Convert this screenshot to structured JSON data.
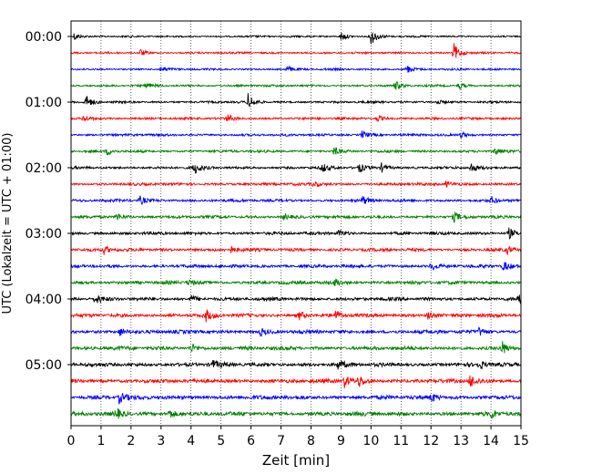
{
  "chart_data": {
    "type": "line",
    "title": "",
    "xlabel": "Zeit  [min]",
    "ylabel": "UTC (Lokalzeit = UTC + 01:00)",
    "xlim": [
      0,
      15
    ],
    "xticks": [
      0,
      1,
      2,
      3,
      4,
      5,
      6,
      7,
      8,
      9,
      10,
      11,
      12,
      13,
      14,
      15
    ],
    "grid": "vertical dotted at each minute",
    "y_tick_labels": [
      "00:00",
      "01:00",
      "02:00",
      "03:00",
      "04:00",
      "05:00"
    ],
    "y_tick_rows": [
      0,
      4,
      8,
      12,
      16,
      20
    ],
    "trace_interval_min": 15,
    "trace_count": 24,
    "trace_colors": [
      "#000000",
      "#ff0000",
      "#0000ff",
      "#008000"
    ],
    "events": [
      {
        "row": 0,
        "t": 0.1,
        "amp": 0.45
      },
      {
        "row": 0,
        "t": 9.0,
        "amp": 0.55
      },
      {
        "row": 0,
        "t": 10.0,
        "amp": 1.0
      },
      {
        "row": 1,
        "t": 2.3,
        "amp": 0.4
      },
      {
        "row": 1,
        "t": 12.75,
        "amp": 1.1
      },
      {
        "row": 2,
        "t": 3.0,
        "amp": 0.3
      },
      {
        "row": 2,
        "t": 7.2,
        "amp": 0.35
      },
      {
        "row": 2,
        "t": 11.2,
        "amp": 0.45
      },
      {
        "row": 3,
        "t": 2.5,
        "amp": 0.35
      },
      {
        "row": 3,
        "t": 10.8,
        "amp": 0.5
      },
      {
        "row": 3,
        "t": 12.9,
        "amp": 0.45
      },
      {
        "row": 4,
        "t": 0.5,
        "amp": 0.7
      },
      {
        "row": 4,
        "t": 5.9,
        "amp": 0.9
      },
      {
        "row": 4,
        "t": 12.2,
        "amp": 0.3
      },
      {
        "row": 5,
        "t": 0.4,
        "amp": 0.4
      },
      {
        "row": 5,
        "t": 5.2,
        "amp": 0.5
      },
      {
        "row": 5,
        "t": 10.2,
        "amp": 0.35
      },
      {
        "row": 6,
        "t": 9.7,
        "amp": 0.45
      },
      {
        "row": 6,
        "t": 13.0,
        "amp": 0.35
      },
      {
        "row": 7,
        "t": 1.2,
        "amp": 0.4
      },
      {
        "row": 7,
        "t": 8.75,
        "amp": 0.5
      },
      {
        "row": 7,
        "t": 14.1,
        "amp": 0.45
      },
      {
        "row": 8,
        "t": 4.1,
        "amp": 0.7
      },
      {
        "row": 8,
        "t": 8.35,
        "amp": 0.5
      },
      {
        "row": 8,
        "t": 9.6,
        "amp": 0.5
      },
      {
        "row": 8,
        "t": 10.35,
        "amp": 0.5
      },
      {
        "row": 8,
        "t": 13.3,
        "amp": 0.6
      },
      {
        "row": 9,
        "t": 8.1,
        "amp": 0.35
      },
      {
        "row": 9,
        "t": 12.5,
        "amp": 0.3
      },
      {
        "row": 10,
        "t": 2.3,
        "amp": 0.45
      },
      {
        "row": 10,
        "t": 9.7,
        "amp": 0.5
      },
      {
        "row": 10,
        "t": 14.0,
        "amp": 0.4
      },
      {
        "row": 11,
        "t": 1.5,
        "amp": 0.45
      },
      {
        "row": 11,
        "t": 7.1,
        "amp": 0.3
      },
      {
        "row": 11,
        "t": 12.75,
        "amp": 0.55
      },
      {
        "row": 12,
        "t": 8.9,
        "amp": 0.45
      },
      {
        "row": 12,
        "t": 14.6,
        "amp": 0.6
      },
      {
        "row": 13,
        "t": 1.1,
        "amp": 0.45
      },
      {
        "row": 13,
        "t": 5.3,
        "amp": 0.4
      },
      {
        "row": 13,
        "t": 14.5,
        "amp": 0.45
      },
      {
        "row": 14,
        "t": 12.0,
        "amp": 0.5
      },
      {
        "row": 14,
        "t": 14.4,
        "amp": 0.55
      },
      {
        "row": 15,
        "t": 3.9,
        "amp": 0.4
      },
      {
        "row": 15,
        "t": 8.8,
        "amp": 0.45
      },
      {
        "row": 16,
        "t": 0.8,
        "amp": 0.55
      },
      {
        "row": 16,
        "t": 4.0,
        "amp": 0.45
      },
      {
        "row": 16,
        "t": 14.9,
        "amp": 0.55
      },
      {
        "row": 17,
        "t": 4.5,
        "amp": 0.6
      },
      {
        "row": 17,
        "t": 7.6,
        "amp": 0.5
      },
      {
        "row": 17,
        "t": 8.8,
        "amp": 0.55
      },
      {
        "row": 17,
        "t": 11.9,
        "amp": 0.5
      },
      {
        "row": 18,
        "t": 1.6,
        "amp": 0.5
      },
      {
        "row": 18,
        "t": 6.3,
        "amp": 0.4
      },
      {
        "row": 18,
        "t": 13.6,
        "amp": 0.45
      },
      {
        "row": 19,
        "t": 4.0,
        "amp": 0.5
      },
      {
        "row": 19,
        "t": 14.35,
        "amp": 0.85
      },
      {
        "row": 20,
        "t": 4.7,
        "amp": 0.45
      },
      {
        "row": 20,
        "t": 8.9,
        "amp": 0.45
      },
      {
        "row": 20,
        "t": 13.6,
        "amp": 0.45
      },
      {
        "row": 21,
        "t": 9.1,
        "amp": 0.75
      },
      {
        "row": 21,
        "t": 9.6,
        "amp": 0.6
      },
      {
        "row": 21,
        "t": 13.3,
        "amp": 0.75
      },
      {
        "row": 22,
        "t": 1.6,
        "amp": 0.6
      },
      {
        "row": 22,
        "t": 12.0,
        "amp": 0.45
      },
      {
        "row": 23,
        "t": 1.5,
        "amp": 0.55
      },
      {
        "row": 23,
        "t": 3.25,
        "amp": 0.6
      },
      {
        "row": 23,
        "t": 14.0,
        "amp": 0.5
      }
    ]
  }
}
